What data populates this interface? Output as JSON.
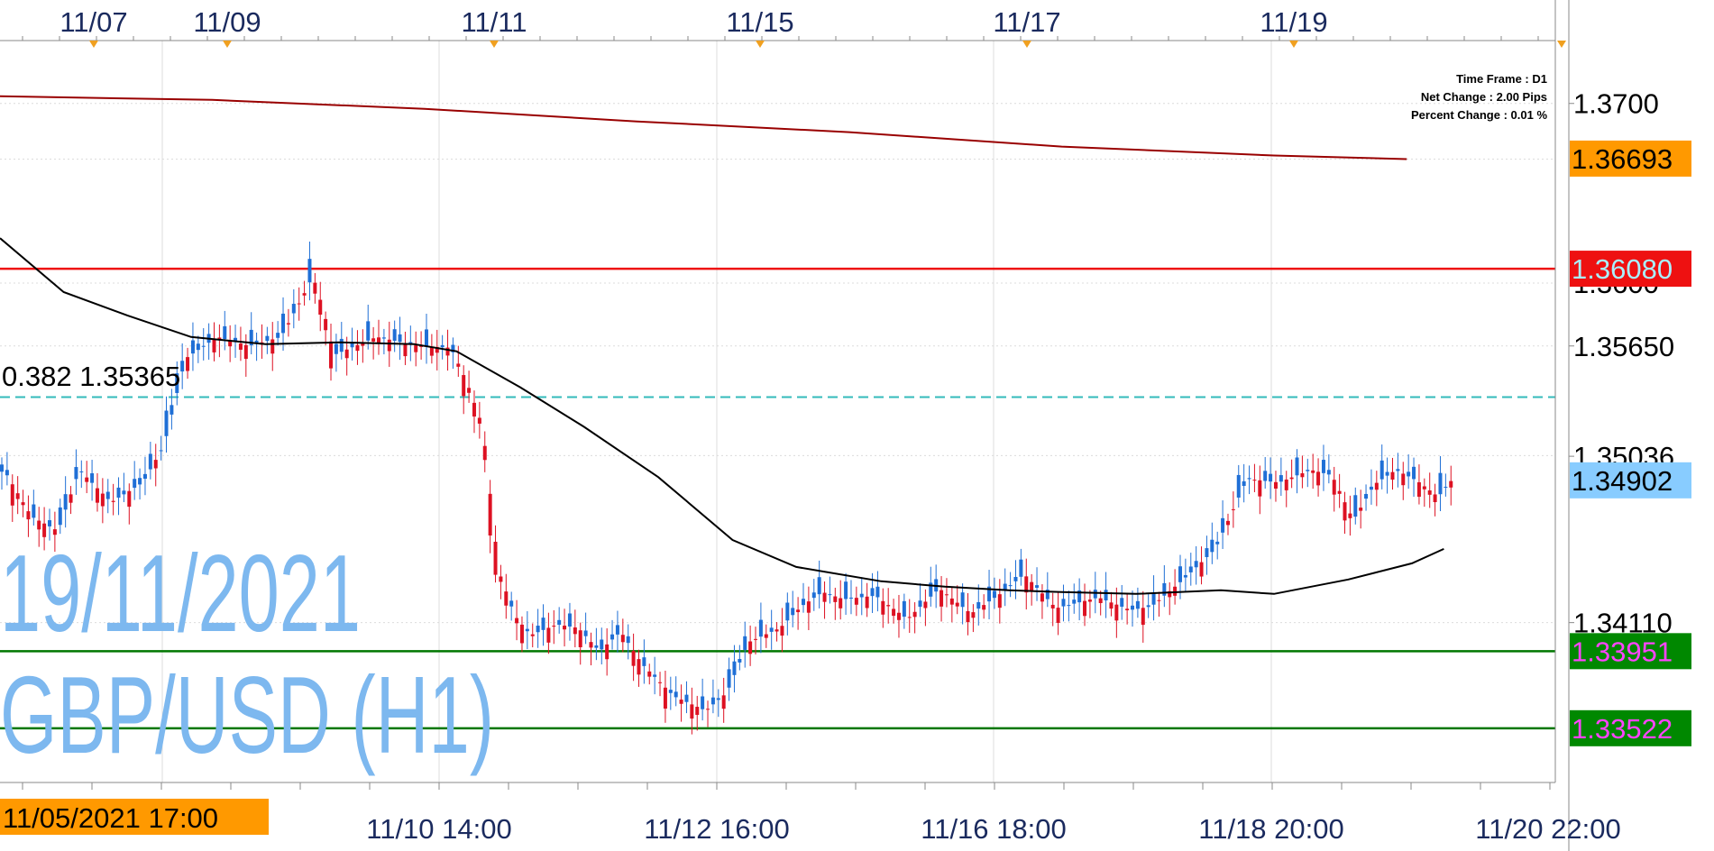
{
  "chart_data": {
    "type": "candlestick",
    "symbol": "GBP/USD",
    "timeframe": "H1",
    "watermark": {
      "date": "19/11/2021",
      "symbol": "GBP/USD (H1)"
    },
    "info_box": {
      "time_frame": "Time Frame : D1",
      "net_change": "Net Change : 2.00 Pips",
      "percent_change": "Percent Change : 0.01 %"
    },
    "top_date_labels": [
      "11/07",
      "11/09",
      "11/11",
      "11/15",
      "11/17",
      "11/19"
    ],
    "bottom_time_labels": [
      "11/10 14:00",
      "11/12 16:00",
      "11/16 18:00",
      "11/18 20:00",
      "11/20 22:00"
    ],
    "cursor_time_label": "11/05/2021 17:00",
    "y_axis": {
      "ylim": [
        1.3322,
        1.3735
      ],
      "tick_labels": [
        "1.3700",
        "1.35650",
        "1.35036",
        "1.34110"
      ],
      "partially_hidden_label": "1.3600"
    },
    "price_tags": [
      {
        "label": "1.36693",
        "value": 1.36693,
        "bg": "#ff9900",
        "fg": "#000000"
      },
      {
        "label": "1.36080",
        "value": 1.3608,
        "bg": "#ee1111",
        "fg": "#aaf0ff"
      },
      {
        "label": "1.34902",
        "value": 1.34902,
        "bg": "#88ccff",
        "fg": "#000000"
      },
      {
        "label": "1.33951",
        "value": 1.33951,
        "bg": "#008800",
        "fg": "#ff44ff"
      },
      {
        "label": "1.33522",
        "value": 1.33522,
        "bg": "#008800",
        "fg": "#ff44ff"
      }
    ],
    "horizontal_lines": [
      {
        "name": "resistance",
        "value": 1.3608,
        "color": "#ee1111",
        "style": "solid"
      },
      {
        "name": "fib-0.382",
        "value": 1.35365,
        "color": "#33bbbb",
        "style": "dashed"
      },
      {
        "name": "support-1",
        "value": 1.33951,
        "color": "#007700",
        "style": "solid"
      },
      {
        "name": "support-2",
        "value": 1.33522,
        "color": "#007700",
        "style": "solid"
      }
    ],
    "fib_label": "0.382 1.35365",
    "long_ma": {
      "color": "#990000",
      "values": [
        [
          0,
          1.3704
        ],
        [
          40,
          1.3702
        ],
        [
          80,
          1.3697
        ],
        [
          120,
          1.369
        ],
        [
          160,
          1.3684
        ],
        [
          200,
          1.3676
        ],
        [
          240,
          1.3671
        ],
        [
          265,
          1.3669
        ]
      ]
    },
    "ma": {
      "color": "#000000",
      "values": [
        [
          0,
          1.3625
        ],
        [
          12,
          1.3595
        ],
        [
          24,
          1.3582
        ],
        [
          36,
          1.357
        ],
        [
          50,
          1.3566
        ],
        [
          64,
          1.3567
        ],
        [
          78,
          1.3566
        ],
        [
          86,
          1.3562
        ],
        [
          98,
          1.3542
        ],
        [
          110,
          1.352
        ],
        [
          124,
          1.3492
        ],
        [
          138,
          1.3457
        ],
        [
          150,
          1.3442
        ],
        [
          166,
          1.3434
        ],
        [
          178,
          1.3431
        ],
        [
          190,
          1.3429
        ],
        [
          200,
          1.3428
        ],
        [
          214,
          1.3427
        ],
        [
          230,
          1.3429
        ],
        [
          240,
          1.3427
        ],
        [
          254,
          1.3435
        ],
        [
          266,
          1.3444
        ],
        [
          272,
          1.3452
        ]
      ]
    },
    "candle_path": [
      [
        0,
        1.3495
      ],
      [
        5,
        1.347
      ],
      [
        10,
        1.3462
      ],
      [
        14,
        1.3496
      ],
      [
        20,
        1.3478
      ],
      [
        26,
        1.3489
      ],
      [
        30,
        1.351
      ],
      [
        34,
        1.3558
      ],
      [
        40,
        1.357
      ],
      [
        46,
        1.3565
      ],
      [
        52,
        1.357
      ],
      [
        56,
        1.3592
      ],
      [
        58,
        1.3604
      ],
      [
        60,
        1.3585
      ],
      [
        62,
        1.356
      ],
      [
        70,
        1.357
      ],
      [
        78,
        1.3565
      ],
      [
        84,
        1.3564
      ],
      [
        87,
        1.3545
      ],
      [
        90,
        1.352
      ],
      [
        93,
        1.344
      ],
      [
        96,
        1.3415
      ],
      [
        99,
        1.3404
      ],
      [
        104,
        1.341
      ],
      [
        108,
        1.3408
      ],
      [
        112,
        1.3395
      ],
      [
        116,
        1.3406
      ],
      [
        120,
        1.3388
      ],
      [
        126,
        1.337
      ],
      [
        132,
        1.3362
      ],
      [
        136,
        1.3372
      ],
      [
        140,
        1.34
      ],
      [
        146,
        1.3408
      ],
      [
        150,
        1.342
      ],
      [
        154,
        1.3428
      ],
      [
        158,
        1.3424
      ],
      [
        164,
        1.3426
      ],
      [
        170,
        1.3413
      ],
      [
        176,
        1.343
      ],
      [
        182,
        1.3416
      ],
      [
        188,
        1.3428
      ],
      [
        192,
        1.3438
      ],
      [
        198,
        1.3419
      ],
      [
        206,
        1.3425
      ],
      [
        212,
        1.3418
      ],
      [
        216,
        1.342
      ],
      [
        222,
        1.3435
      ],
      [
        228,
        1.3452
      ],
      [
        234,
        1.3491
      ],
      [
        240,
        1.3489
      ],
      [
        246,
        1.3496
      ],
      [
        250,
        1.3493
      ],
      [
        254,
        1.3468
      ],
      [
        258,
        1.3488
      ],
      [
        262,
        1.3496
      ],
      [
        266,
        1.349
      ],
      [
        270,
        1.3481
      ],
      [
        273,
        1.3492
      ]
    ],
    "x_range": [
      0,
      293
    ],
    "colors": {
      "bull": "#1f6fd6",
      "bear": "#dd1122",
      "grid": "#dcdcdc",
      "axis_text": "#000000",
      "date_text": "#1a2a5e",
      "watermark": "#7db8ef"
    }
  }
}
